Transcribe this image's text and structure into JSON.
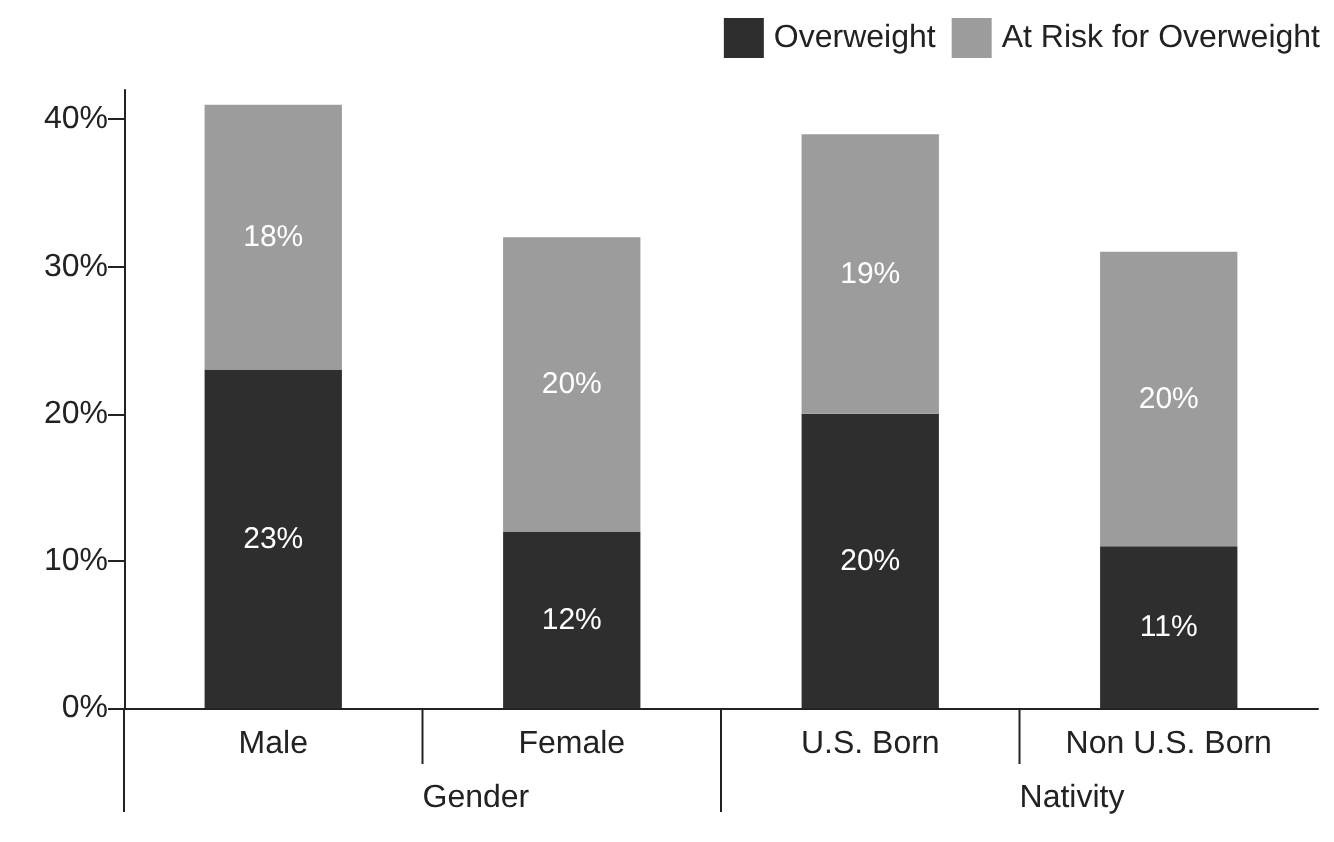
{
  "chart_data": {
    "type": "bar",
    "stacked": true,
    "categories": [
      "Male",
      "Female",
      "U.S. Born",
      "Non U.S. Born"
    ],
    "series": [
      {
        "name": "Overweight",
        "color": "#2e2e2e",
        "values": [
          23,
          12,
          20,
          11
        ],
        "value_labels": [
          "23%",
          "12%",
          "20%",
          "11%"
        ]
      },
      {
        "name": "At Risk for Overweight",
        "color": "#9c9c9c",
        "values": [
          18,
          20,
          19,
          20
        ],
        "value_labels": [
          "18%",
          "20%",
          "19%",
          "20%"
        ]
      }
    ],
    "ylim": [
      0,
      42
    ],
    "yticks": [
      {
        "value": 0,
        "label": "0%"
      },
      {
        "value": 10,
        "label": "10%"
      },
      {
        "value": 20,
        "label": "20%"
      },
      {
        "value": 30,
        "label": "30%"
      },
      {
        "value": 40,
        "label": "40%"
      }
    ],
    "annotations": [
      "Gender",
      "Nativity"
    ],
    "grid": false,
    "legend": "top right"
  }
}
